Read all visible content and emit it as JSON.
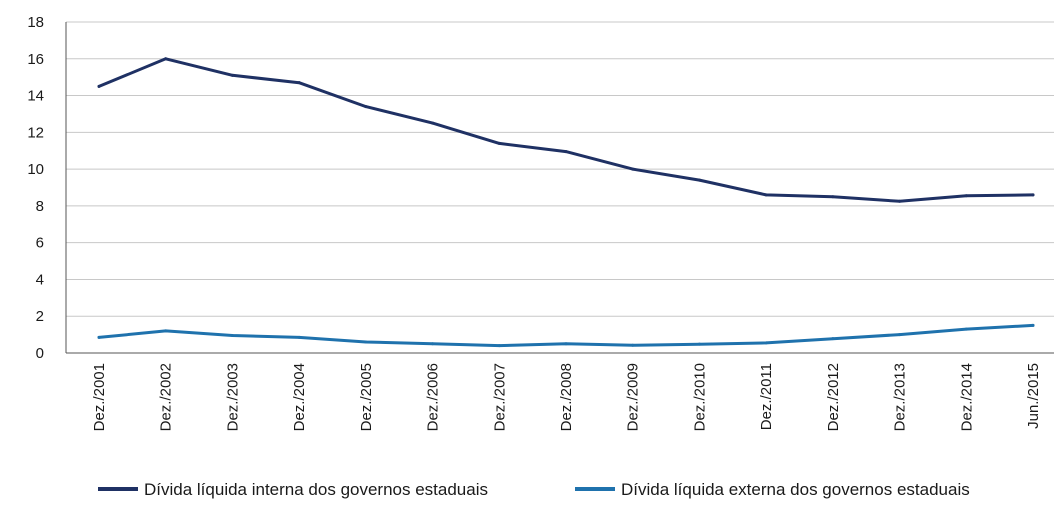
{
  "chart_data": {
    "type": "line",
    "title": "",
    "xlabel": "",
    "ylabel": "",
    "ylim": [
      0,
      18
    ],
    "yticks": [
      "0",
      "2",
      "4",
      "6",
      "8",
      "10",
      "12",
      "14",
      "16",
      "18"
    ],
    "categories": [
      "Dez./2001",
      "Dez./2002",
      "Dez./2003",
      "Dez./2004",
      "Dez./2005",
      "Dez./2006",
      "Dez./2007",
      "Dez./2008",
      "Dez./2009",
      "Dez./2010",
      "Dez./2011",
      "Dez./2012",
      "Dez./2013",
      "Dez./2014",
      "Jun./2015"
    ],
    "grid": true,
    "legend_position": "bottom",
    "series": [
      {
        "name": "Dívida líquida interna dos governos estaduais",
        "color": "#1f3164",
        "points": [
          {
            "x": "Dez./2001",
            "y": 14.5
          },
          {
            "x": "Dez./2002",
            "y": 16.0
          },
          {
            "x": "Dez./2003",
            "y": 15.1
          },
          {
            "x": "Dez./2004",
            "y": 14.7
          },
          {
            "x": "Dez./2005",
            "y": 13.4
          },
          {
            "x": "Dez./2006",
            "y": 12.5
          },
          {
            "x": "Dez./2007",
            "y": 11.4
          },
          {
            "x": "Dez./2008",
            "y": 10.95
          },
          {
            "x": "Dez./2009",
            "y": 10.0
          },
          {
            "x": "Dez./2010",
            "y": 9.4
          },
          {
            "x": "Dez./2011",
            "y": 8.6
          },
          {
            "x": "Dez./2012",
            "y": 8.5
          },
          {
            "x": "Dez./2013",
            "y": 8.25
          },
          {
            "x": "Dez./2014",
            "y": 8.55
          },
          {
            "x": "Jun./2015",
            "y": 8.6
          }
        ]
      },
      {
        "name": "Dívida líquida externa dos governos estaduais",
        "color": "#1f72ad",
        "points": [
          {
            "x": "Dez./2001",
            "y": 0.85
          },
          {
            "x": "Dez./2002",
            "y": 1.2
          },
          {
            "x": "Dez./2003",
            "y": 0.95
          },
          {
            "x": "Dez./2004",
            "y": 0.85
          },
          {
            "x": "Dez./2005",
            "y": 0.6
          },
          {
            "x": "Dez./2006",
            "y": 0.5
          },
          {
            "x": "Dez./2007",
            "y": 0.4
          },
          {
            "x": "Dez./2008",
            "y": 0.5
          },
          {
            "x": "Dez./2009",
            "y": 0.42
          },
          {
            "x": "Dez./2010",
            "y": 0.48
          },
          {
            "x": "Dez./2011",
            "y": 0.55
          },
          {
            "x": "Dez./2012",
            "y": 0.78
          },
          {
            "x": "Dez./2013",
            "y": 1.0
          },
          {
            "x": "Dez./2014",
            "y": 1.3
          },
          {
            "x": "Jun./2015",
            "y": 1.5
          }
        ]
      }
    ]
  }
}
